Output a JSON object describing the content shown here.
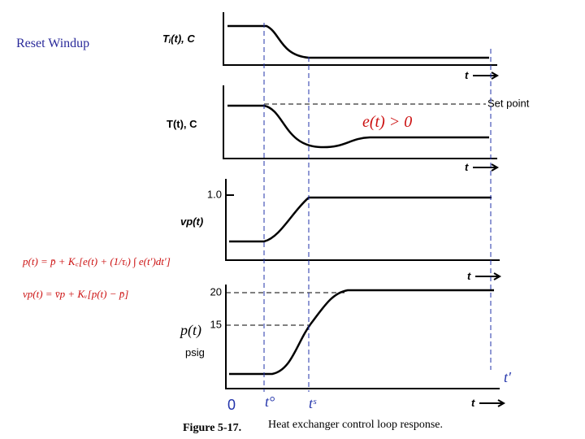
{
  "slide_title": "Reset Windup",
  "panels": [
    {
      "y_label": "Tᵢ(t), C",
      "x_label": "t"
    },
    {
      "y_label": "T(t), C",
      "x_label": "t",
      "setpoint_label": "Set point",
      "annotation": "e(t) > 0"
    },
    {
      "y_label": "vp(t)",
      "x_label": "t",
      "ticks": [
        "1.0"
      ]
    },
    {
      "y_label": "p(t)",
      "y_unit": "psig",
      "x_label": "t",
      "ticks": [
        "20",
        "15"
      ]
    }
  ],
  "time_labels": [
    "0",
    "t°",
    "tˢ",
    "t′"
  ],
  "equations": [
    "p(t) = p̄ + K꜀[e(t) + (1/τᵢ) ∫ e(t′)dt′]",
    "vp(t) = v̄p + Kᵥ[p(t) − p̄]"
  ],
  "caption": {
    "number": "Figure 5-17.",
    "text": "Heat exchanger control loop response."
  }
}
